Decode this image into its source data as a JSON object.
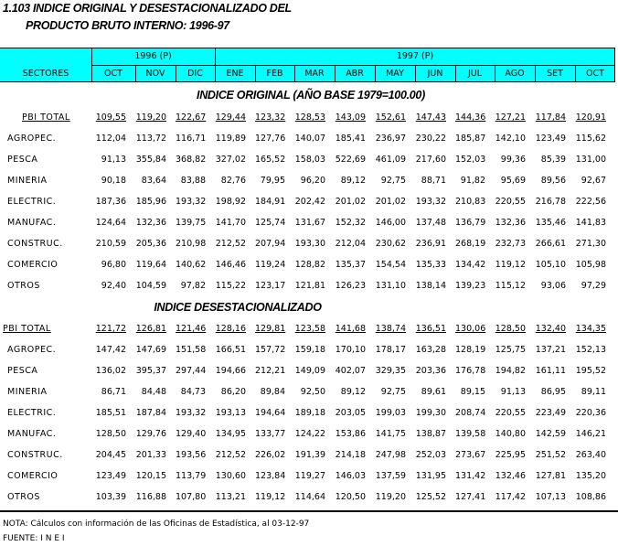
{
  "title": {
    "line1": "1.103  INDICE ORIGINAL Y DESESTACIONALIZADO DEL",
    "line2": "PRODUCTO BRUTO INTERNO: 1996-97"
  },
  "header": {
    "sectores": "SECTORES",
    "year1": "1996 (P)",
    "year2": "1997 (P)",
    "months": [
      "OCT",
      "NOV",
      "DIC",
      "ENE",
      "FEB",
      "MAR",
      "ABR",
      "MAY",
      "JUN",
      "JUL",
      "AGO",
      "SET",
      "OCT"
    ],
    "bg_color": "#00ffff"
  },
  "sections": [
    {
      "title": "INDICE ORIGINAL  (AÑO BASE 1979=100.00)",
      "rows": [
        {
          "label": "PBI TOTAL",
          "values": [
            "109,55",
            "119,20",
            "122,67",
            "129,44",
            "123,32",
            "128,53",
            "143,09",
            "152,61",
            "147,43",
            "144,36",
            "127,21",
            "117,84",
            "120,91"
          ]
        },
        {
          "label": "AGROPEC.",
          "values": [
            "112,04",
            "113,72",
            "116,71",
            "119,89",
            "127,76",
            "140,07",
            "185,41",
            "236,97",
            "230,22",
            "185,87",
            "142,10",
            "123,49",
            "115,62"
          ]
        },
        {
          "label": "PESCA",
          "values": [
            "91,13",
            "355,84",
            "368,82",
            "327,02",
            "165,52",
            "158,03",
            "522,69",
            "461,09",
            "217,60",
            "152,03",
            "99,36",
            "85,39",
            "131,00"
          ]
        },
        {
          "label": "MINERIA",
          "values": [
            "90,18",
            "83,64",
            "83,88",
            "82,76",
            "79,95",
            "96,20",
            "89,12",
            "92,75",
            "88,71",
            "91,82",
            "95,69",
            "89,56",
            "92,67"
          ]
        },
        {
          "label": "ELECTRIC.",
          "values": [
            "187,36",
            "185,96",
            "193,32",
            "198,92",
            "184,91",
            "202,42",
            "201,02",
            "201,02",
            "193,32",
            "210,83",
            "220,55",
            "216,78",
            "222,56"
          ]
        },
        {
          "label": "MANUFAC.",
          "values": [
            "124,64",
            "132,36",
            "139,75",
            "141,70",
            "125,74",
            "131,67",
            "152,32",
            "146,00",
            "137,48",
            "136,79",
            "132,36",
            "135,46",
            "141,83"
          ]
        },
        {
          "label": "CONSTRUC.",
          "values": [
            "210,59",
            "205,36",
            "210,98",
            "212,52",
            "207,94",
            "193,30",
            "212,04",
            "230,62",
            "236,91",
            "268,19",
            "232,73",
            "266,61",
            "271,30"
          ]
        },
        {
          "label": "COMERCIO",
          "values": [
            "96,80",
            "119,64",
            "140,62",
            "146,46",
            "119,24",
            "128,82",
            "135,37",
            "154,54",
            "135,33",
            "134,42",
            "119,12",
            "105,10",
            "105,98"
          ]
        },
        {
          "label": "OTROS",
          "values": [
            "92,40",
            "104,59",
            "97,82",
            "115,22",
            "123,17",
            "121,81",
            "126,23",
            "131,10",
            "138,14",
            "139,23",
            "115,12",
            "93,06",
            "97,29"
          ]
        }
      ]
    },
    {
      "title": "INDICE DESESTACIONALIZADO",
      "rows": [
        {
          "label": "PBI TOTAL",
          "values": [
            "121,72",
            "126,81",
            "121,46",
            "128,16",
            "129,81",
            "123,58",
            "141,68",
            "138,74",
            "136,51",
            "130,06",
            "128,50",
            "132,40",
            "134,35"
          ]
        },
        {
          "label": "AGROPEC.",
          "values": [
            "147,42",
            "147,69",
            "151,58",
            "166,51",
            "157,72",
            "159,18",
            "170,10",
            "178,17",
            "163,28",
            "128,19",
            "125,75",
            "137,21",
            "152,13"
          ]
        },
        {
          "label": "PESCA",
          "values": [
            "136,02",
            "395,37",
            "297,44",
            "194,66",
            "212,21",
            "149,09",
            "402,07",
            "329,35",
            "203,36",
            "176,78",
            "194,82",
            "161,11",
            "195,52"
          ]
        },
        {
          "label": "MINERIA",
          "values": [
            "86,71",
            "84,48",
            "84,73",
            "86,20",
            "89,84",
            "92,50",
            "89,12",
            "92,75",
            "89,61",
            "89,15",
            "91,13",
            "86,95",
            "89,11"
          ]
        },
        {
          "label": "ELECTRIC.",
          "values": [
            "185,51",
            "187,84",
            "193,32",
            "193,13",
            "194,64",
            "189,18",
            "203,05",
            "199,03",
            "199,30",
            "208,74",
            "220,55",
            "223,49",
            "220,36"
          ]
        },
        {
          "label": "MANUFAC.",
          "values": [
            "128,50",
            "129,76",
            "129,40",
            "134,95",
            "133,77",
            "124,22",
            "153,86",
            "141,75",
            "138,87",
            "139,58",
            "140,80",
            "142,59",
            "146,21"
          ]
        },
        {
          "label": "CONSTRUC.",
          "values": [
            "204,45",
            "201,33",
            "193,56",
            "212,52",
            "226,02",
            "191,39",
            "214,18",
            "247,98",
            "252,03",
            "273,67",
            "225,95",
            "251,52",
            "263,40"
          ]
        },
        {
          "label": "COMERCIO",
          "values": [
            "123,49",
            "120,15",
            "113,79",
            "130,60",
            "123,84",
            "119,27",
            "146,03",
            "137,59",
            "131,95",
            "131,42",
            "132,46",
            "127,81",
            "135,20"
          ]
        },
        {
          "label": "OTROS",
          "values": [
            "103,39",
            "116,88",
            "107,80",
            "113,21",
            "119,12",
            "114,64",
            "120,50",
            "119,20",
            "125,52",
            "127,41",
            "117,42",
            "107,13",
            "108,86"
          ]
        }
      ]
    }
  ],
  "footer": {
    "nota": "NOTA: Cálculos con información de las Oficinas de Estadística, al 03-12-97",
    "fuente": "FUENTE: I N E I"
  }
}
